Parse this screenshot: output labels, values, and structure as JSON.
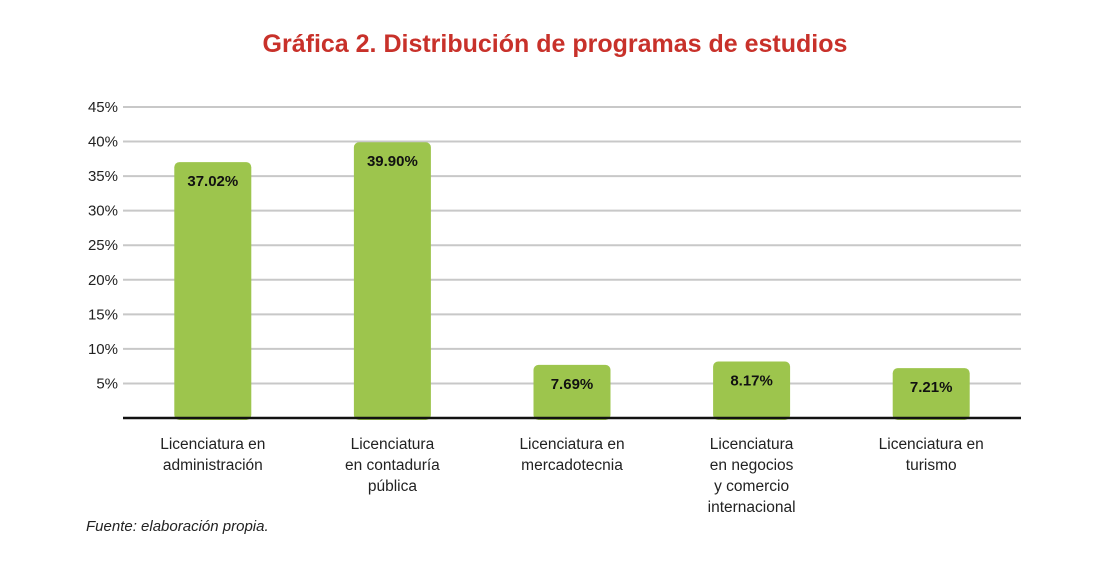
{
  "chart_data": {
    "type": "bar",
    "title": "Gráfica 2. Distribución de programas de estudios",
    "categories": [
      "Licenciatura en administración",
      "Licenciatura en contaduría pública",
      "Licenciatura en mercadotecnia",
      "Licenciatura en negocios y comercio internacional",
      "Licenciatura en turismo"
    ],
    "category_lines": [
      [
        "Licenciatura en",
        "administración"
      ],
      [
        "Licenciatura",
        "en contaduría",
        "pública"
      ],
      [
        "Licenciatura en",
        "mercadotecnia"
      ],
      [
        "Licenciatura",
        "en negocios",
        "y comercio",
        "internacional"
      ],
      [
        "Licenciatura en",
        "turismo"
      ]
    ],
    "values": [
      37.02,
      39.9,
      7.69,
      8.17,
      7.21
    ],
    "value_labels": [
      "37.02%",
      "39.90%",
      "7.69%",
      "8.17%",
      "7.21%"
    ],
    "ylim": [
      0,
      45
    ],
    "yticks": [
      5,
      10,
      15,
      20,
      25,
      30,
      35,
      40,
      45
    ],
    "ytick_labels": [
      "5%",
      "10%",
      "15%",
      "20%",
      "25%",
      "30%",
      "35%",
      "40%",
      "45%"
    ],
    "xlabel": "",
    "ylabel": "",
    "grid": true,
    "bar_color": "#9dc54d",
    "gridline_color": "#c8c8c8",
    "title_color": "#c8312a"
  },
  "source_note": "Fuente: elaboración propia."
}
